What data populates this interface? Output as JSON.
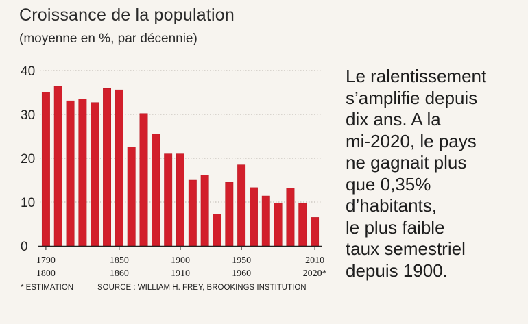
{
  "header": {
    "title": "Croissance de la population",
    "subtitle": "(moyenne en %, par décennie)"
  },
  "note": {
    "text": "Le ralentissement\ns’amplifie depuis\ndix ans. A la\nmi-2020, le pays\nne gagnait plus\nque 0,35%\nd’habitants,\nle plus faible\ntaux semestriel\ndepuis 1900."
  },
  "footer": {
    "estimation": "* ESTIMATION",
    "source": "SOURCE : WILLIAM H. FREY, BROOKINGS INSTITUTION"
  },
  "colors": {
    "bar": "#d21f2b",
    "bar_edge": "#b5141f",
    "grid": "#b9b4ad",
    "axis": "#222222"
  },
  "chart_data": {
    "type": "bar",
    "title": "Croissance de la population",
    "subtitle": "(moyenne en %, par décennie)",
    "ylim": [
      0,
      40
    ],
    "yticks": [
      0,
      10,
      20,
      30,
      40
    ],
    "grid": true,
    "categories": [
      "1790-1800",
      "1800-1810",
      "1810-1820",
      "1820-1830",
      "1830-1840",
      "1840-1850",
      "1850-1860",
      "1860-1870",
      "1870-1880",
      "1880-1890",
      "1890-1900",
      "1900-1910",
      "1910-1920",
      "1920-1930",
      "1930-1940",
      "1940-1950",
      "1950-1960",
      "1960-1970",
      "1970-1980",
      "1980-1990",
      "1990-2000",
      "2000-2010",
      "2010-2020*"
    ],
    "values": [
      35.1,
      36.4,
      33.1,
      33.5,
      32.7,
      35.9,
      35.6,
      22.6,
      30.2,
      25.5,
      21.0,
      21.0,
      15.0,
      16.2,
      7.3,
      14.5,
      18.5,
      13.3,
      11.4,
      9.8,
      13.2,
      9.7,
      6.5
    ],
    "xtick_labels": [
      {
        "top": "1790",
        "bottom": "1800",
        "bar_index": 0
      },
      {
        "top": "1850",
        "bottom": "1860",
        "bar_index": 6
      },
      {
        "top": "1900",
        "bottom": "1910",
        "bar_index": 11
      },
      {
        "top": "1950",
        "bottom": "1960",
        "bar_index": 16
      },
      {
        "top": "2010",
        "bottom": "2020*",
        "bar_index": 22
      }
    ]
  }
}
